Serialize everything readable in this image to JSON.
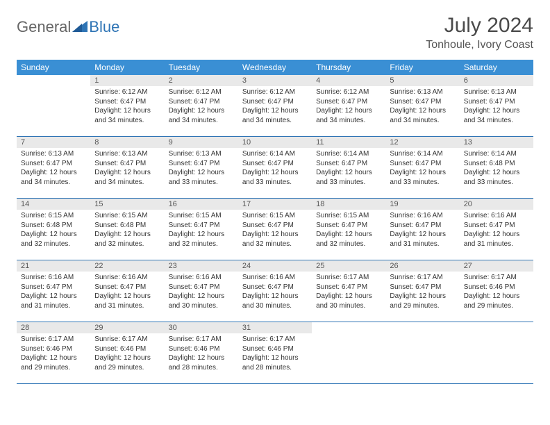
{
  "brand": {
    "part1": "General",
    "part2": "Blue"
  },
  "title": "July 2024",
  "location": "Tonhoule, Ivory Coast",
  "colors": {
    "header_bg": "#3a8fd4",
    "header_text": "#ffffff",
    "daynum_bg": "#e9e9e9",
    "border": "#2e74b5",
    "brand_blue": "#2e74b5",
    "text": "#333333"
  },
  "weekdays": [
    "Sunday",
    "Monday",
    "Tuesday",
    "Wednesday",
    "Thursday",
    "Friday",
    "Saturday"
  ],
  "weeks": [
    [
      {
        "day": "",
        "sunrise": "",
        "sunset": "",
        "daylight": ""
      },
      {
        "day": "1",
        "sunrise": "Sunrise: 6:12 AM",
        "sunset": "Sunset: 6:47 PM",
        "daylight": "Daylight: 12 hours and 34 minutes."
      },
      {
        "day": "2",
        "sunrise": "Sunrise: 6:12 AM",
        "sunset": "Sunset: 6:47 PM",
        "daylight": "Daylight: 12 hours and 34 minutes."
      },
      {
        "day": "3",
        "sunrise": "Sunrise: 6:12 AM",
        "sunset": "Sunset: 6:47 PM",
        "daylight": "Daylight: 12 hours and 34 minutes."
      },
      {
        "day": "4",
        "sunrise": "Sunrise: 6:12 AM",
        "sunset": "Sunset: 6:47 PM",
        "daylight": "Daylight: 12 hours and 34 minutes."
      },
      {
        "day": "5",
        "sunrise": "Sunrise: 6:13 AM",
        "sunset": "Sunset: 6:47 PM",
        "daylight": "Daylight: 12 hours and 34 minutes."
      },
      {
        "day": "6",
        "sunrise": "Sunrise: 6:13 AM",
        "sunset": "Sunset: 6:47 PM",
        "daylight": "Daylight: 12 hours and 34 minutes."
      }
    ],
    [
      {
        "day": "7",
        "sunrise": "Sunrise: 6:13 AM",
        "sunset": "Sunset: 6:47 PM",
        "daylight": "Daylight: 12 hours and 34 minutes."
      },
      {
        "day": "8",
        "sunrise": "Sunrise: 6:13 AM",
        "sunset": "Sunset: 6:47 PM",
        "daylight": "Daylight: 12 hours and 34 minutes."
      },
      {
        "day": "9",
        "sunrise": "Sunrise: 6:13 AM",
        "sunset": "Sunset: 6:47 PM",
        "daylight": "Daylight: 12 hours and 33 minutes."
      },
      {
        "day": "10",
        "sunrise": "Sunrise: 6:14 AM",
        "sunset": "Sunset: 6:47 PM",
        "daylight": "Daylight: 12 hours and 33 minutes."
      },
      {
        "day": "11",
        "sunrise": "Sunrise: 6:14 AM",
        "sunset": "Sunset: 6:47 PM",
        "daylight": "Daylight: 12 hours and 33 minutes."
      },
      {
        "day": "12",
        "sunrise": "Sunrise: 6:14 AM",
        "sunset": "Sunset: 6:47 PM",
        "daylight": "Daylight: 12 hours and 33 minutes."
      },
      {
        "day": "13",
        "sunrise": "Sunrise: 6:14 AM",
        "sunset": "Sunset: 6:48 PM",
        "daylight": "Daylight: 12 hours and 33 minutes."
      }
    ],
    [
      {
        "day": "14",
        "sunrise": "Sunrise: 6:15 AM",
        "sunset": "Sunset: 6:48 PM",
        "daylight": "Daylight: 12 hours and 32 minutes."
      },
      {
        "day": "15",
        "sunrise": "Sunrise: 6:15 AM",
        "sunset": "Sunset: 6:48 PM",
        "daylight": "Daylight: 12 hours and 32 minutes."
      },
      {
        "day": "16",
        "sunrise": "Sunrise: 6:15 AM",
        "sunset": "Sunset: 6:47 PM",
        "daylight": "Daylight: 12 hours and 32 minutes."
      },
      {
        "day": "17",
        "sunrise": "Sunrise: 6:15 AM",
        "sunset": "Sunset: 6:47 PM",
        "daylight": "Daylight: 12 hours and 32 minutes."
      },
      {
        "day": "18",
        "sunrise": "Sunrise: 6:15 AM",
        "sunset": "Sunset: 6:47 PM",
        "daylight": "Daylight: 12 hours and 32 minutes."
      },
      {
        "day": "19",
        "sunrise": "Sunrise: 6:16 AM",
        "sunset": "Sunset: 6:47 PM",
        "daylight": "Daylight: 12 hours and 31 minutes."
      },
      {
        "day": "20",
        "sunrise": "Sunrise: 6:16 AM",
        "sunset": "Sunset: 6:47 PM",
        "daylight": "Daylight: 12 hours and 31 minutes."
      }
    ],
    [
      {
        "day": "21",
        "sunrise": "Sunrise: 6:16 AM",
        "sunset": "Sunset: 6:47 PM",
        "daylight": "Daylight: 12 hours and 31 minutes."
      },
      {
        "day": "22",
        "sunrise": "Sunrise: 6:16 AM",
        "sunset": "Sunset: 6:47 PM",
        "daylight": "Daylight: 12 hours and 31 minutes."
      },
      {
        "day": "23",
        "sunrise": "Sunrise: 6:16 AM",
        "sunset": "Sunset: 6:47 PM",
        "daylight": "Daylight: 12 hours and 30 minutes."
      },
      {
        "day": "24",
        "sunrise": "Sunrise: 6:16 AM",
        "sunset": "Sunset: 6:47 PM",
        "daylight": "Daylight: 12 hours and 30 minutes."
      },
      {
        "day": "25",
        "sunrise": "Sunrise: 6:17 AM",
        "sunset": "Sunset: 6:47 PM",
        "daylight": "Daylight: 12 hours and 30 minutes."
      },
      {
        "day": "26",
        "sunrise": "Sunrise: 6:17 AM",
        "sunset": "Sunset: 6:47 PM",
        "daylight": "Daylight: 12 hours and 29 minutes."
      },
      {
        "day": "27",
        "sunrise": "Sunrise: 6:17 AM",
        "sunset": "Sunset: 6:46 PM",
        "daylight": "Daylight: 12 hours and 29 minutes."
      }
    ],
    [
      {
        "day": "28",
        "sunrise": "Sunrise: 6:17 AM",
        "sunset": "Sunset: 6:46 PM",
        "daylight": "Daylight: 12 hours and 29 minutes."
      },
      {
        "day": "29",
        "sunrise": "Sunrise: 6:17 AM",
        "sunset": "Sunset: 6:46 PM",
        "daylight": "Daylight: 12 hours and 29 minutes."
      },
      {
        "day": "30",
        "sunrise": "Sunrise: 6:17 AM",
        "sunset": "Sunset: 6:46 PM",
        "daylight": "Daylight: 12 hours and 28 minutes."
      },
      {
        "day": "31",
        "sunrise": "Sunrise: 6:17 AM",
        "sunset": "Sunset: 6:46 PM",
        "daylight": "Daylight: 12 hours and 28 minutes."
      },
      {
        "day": "",
        "sunrise": "",
        "sunset": "",
        "daylight": ""
      },
      {
        "day": "",
        "sunrise": "",
        "sunset": "",
        "daylight": ""
      },
      {
        "day": "",
        "sunrise": "",
        "sunset": "",
        "daylight": ""
      }
    ]
  ]
}
